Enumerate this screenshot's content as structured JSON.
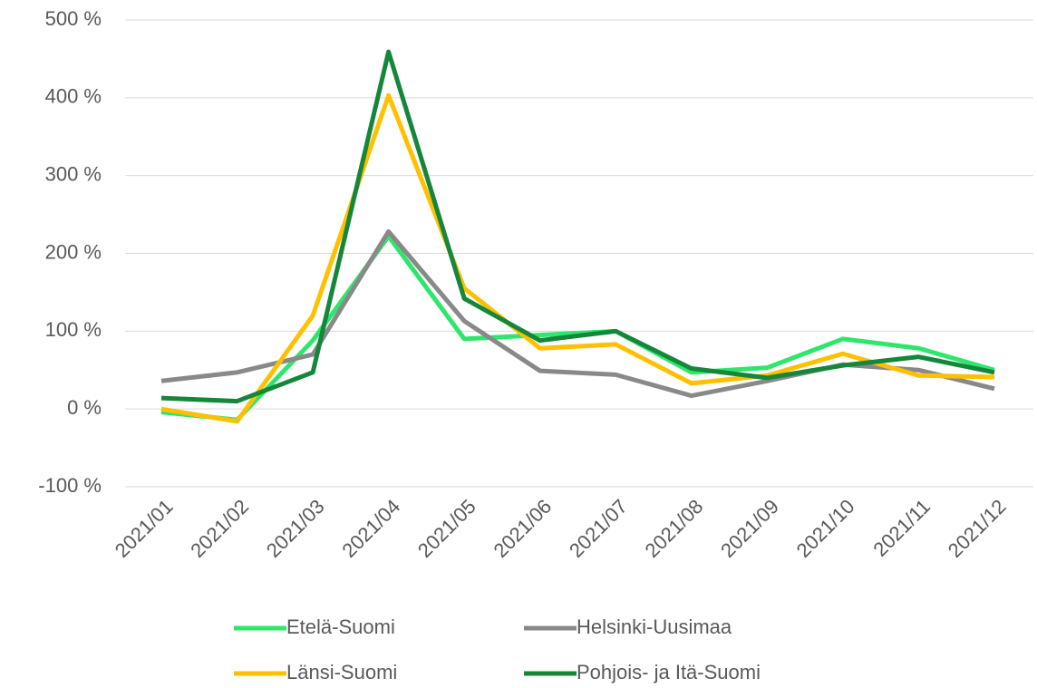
{
  "chart_data": {
    "type": "line",
    "categories": [
      "2021/01",
      "2021/02",
      "2021/03",
      "2021/04",
      "2021/05",
      "2021/06",
      "2021/07",
      "2021/08",
      "2021/09",
      "2021/10",
      "2021/11",
      "2021/12"
    ],
    "series": [
      {
        "name": "Etelä-Suomi",
        "color": "#2ee66b",
        "values": [
          -4,
          -14,
          88,
          222,
          90,
          95,
          100,
          47,
          53,
          90,
          78,
          50
        ]
      },
      {
        "name": "Helsinki-Uusimaa",
        "color": "#898989",
        "values": [
          36,
          47,
          70,
          228,
          113,
          49,
          44,
          17,
          36,
          57,
          50,
          26
        ]
      },
      {
        "name": "Länsi-Suomi",
        "color": "#ffc000",
        "values": [
          0,
          -16,
          120,
          403,
          155,
          78,
          83,
          33,
          43,
          71,
          43,
          41
        ]
      },
      {
        "name": "Pohjois- ja Itä-Suomi",
        "color": "#14873a",
        "values": [
          14,
          10,
          47,
          459,
          142,
          88,
          100,
          52,
          40,
          56,
          67,
          47
        ]
      }
    ],
    "ylim": [
      -100,
      500
    ],
    "yticks": [
      {
        "value": -100,
        "label": "-100 %"
      },
      {
        "value": 0,
        "label": "0 %"
      },
      {
        "value": 100,
        "label": "100 %"
      },
      {
        "value": 200,
        "label": "200 %"
      },
      {
        "value": 300,
        "label": "300 %"
      },
      {
        "value": 400,
        "label": "400 %"
      },
      {
        "value": 500,
        "label": "500 %"
      }
    ],
    "grid": true,
    "legend": "bottom"
  }
}
